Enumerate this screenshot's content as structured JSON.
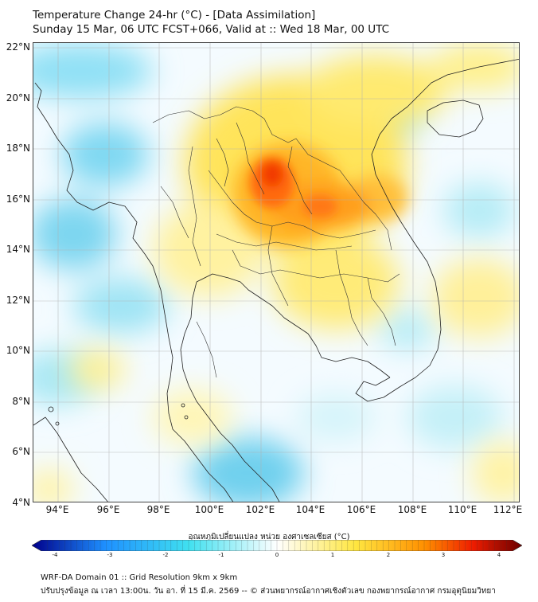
{
  "title": {
    "line1": "Temperature Change 24-hr (°C) - [Data Assimilation]",
    "line2": "Sunday 15 Mar, 06 UTC FCST+066, Valid at :: Wed 18 Mar, 00 UTC"
  },
  "map": {
    "lat_labels": [
      "22°N",
      "20°N",
      "18°N",
      "16°N",
      "14°N",
      "12°N",
      "10°N",
      "8°N",
      "6°N",
      "4°N"
    ],
    "lon_labels": [
      "94°E",
      "96°E",
      "98°E",
      "100°E",
      "102°E",
      "104°E",
      "106°E",
      "108°E",
      "110°E",
      "112°E"
    ],
    "lat_range": [
      4,
      22.2
    ],
    "lon_range": [
      93,
      112.2
    ]
  },
  "colorbar": {
    "title": "อุณหภูมิเปลี่ยนแปลง หน่วย องศาเซลเซียส (°C)",
    "ticks": [
      "-4",
      "-3",
      "-2",
      "-1",
      "0",
      "1",
      "2",
      "3",
      "4"
    ],
    "range": [
      -4,
      4
    ],
    "colors": {
      "cold_end": "#00008b",
      "cold": "#1e90ff",
      "cool": "#40e0f0",
      "neutral": "#ffffff",
      "warm": "#ffe640",
      "hot": "#ff9000",
      "hotter": "#ee1c00",
      "warm_end": "#6b0000"
    }
  },
  "footer": {
    "line1": "WRF-DA Domain 01 :: Grid Resolution 9km x 9km",
    "line2": "ปรับปรุงข้อมูล ณ เวลา 13:00น. วัน อา. ที่ 15 มี.ค. 2569 -- © ส่วนพยากรณ์อากาศเชิงตัวเลข กองพยากรณ์อากาศ กรมอุตุนิยมวิทยา"
  }
}
